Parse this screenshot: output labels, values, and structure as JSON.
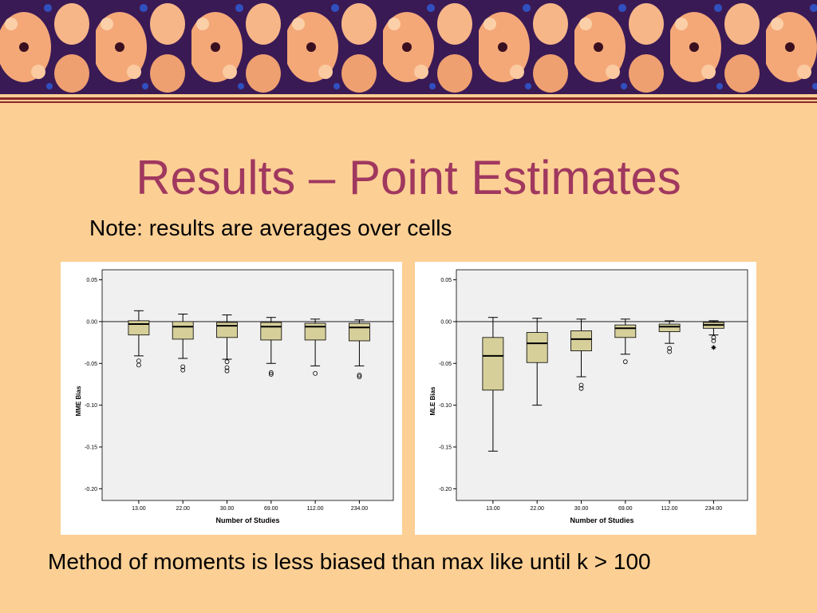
{
  "title": "Results – Point Estimates",
  "note": "Note: results are averages over cells",
  "footer": "Method of moments is less biased than max like until k > 100",
  "chart_data": [
    {
      "type": "box",
      "xlabel": "Number of Studies",
      "ylabel": "MME Bias",
      "categories": [
        "13.00",
        "22.00",
        "30.00",
        "69.00",
        "112.00",
        "234.00"
      ],
      "color": "#d6cf9a",
      "reference_line": 0,
      "ylim": [
        -0.214,
        0.062
      ],
      "yticks": [
        {
          "value": 0.05,
          "label": "0.05"
        },
        {
          "value": 0,
          "label": "0.00"
        },
        {
          "value": -0.05,
          "label": "-0.05"
        },
        {
          "value": -0.1,
          "label": "-0.10"
        },
        {
          "value": -0.15,
          "label": "-0.15"
        },
        {
          "value": -0.2,
          "label": "-0.20"
        }
      ],
      "boxes": [
        {
          "low": -0.041,
          "q1": -0.016,
          "median": -0.003,
          "q3": 0.001,
          "high": 0.013,
          "outliers": [
            -0.047,
            -0.052
          ]
        },
        {
          "low": -0.044,
          "q1": -0.021,
          "median": -0.006,
          "q3": 0,
          "high": 0.009,
          "outliers": [
            -0.054,
            -0.058
          ]
        },
        {
          "low": -0.045,
          "q1": -0.019,
          "median": -0.005,
          "q3": -0.001,
          "high": 0.008,
          "outliers": [
            -0.048,
            -0.055,
            -0.059
          ]
        },
        {
          "low": -0.05,
          "q1": -0.022,
          "median": -0.006,
          "q3": -0.001,
          "high": 0.005,
          "outliers": [
            -0.061,
            -0.063
          ]
        },
        {
          "low": -0.053,
          "q1": -0.022,
          "median": -0.006,
          "q3": -0.002,
          "high": 0.003,
          "outliers": [
            -0.062
          ]
        },
        {
          "low": -0.053,
          "q1": -0.023,
          "median": -0.007,
          "q3": -0.002,
          "high": 0.002,
          "outliers": [
            -0.064,
            -0.066
          ]
        }
      ]
    },
    {
      "type": "box",
      "xlabel": "Number of Studies",
      "ylabel": "MLE Bias",
      "categories": [
        "13.00",
        "22.00",
        "30.00",
        "69.00",
        "112.00",
        "234.00"
      ],
      "color": "#d6cf9a",
      "reference_line": 0,
      "ylim": [
        -0.214,
        0.062
      ],
      "yticks": [
        {
          "value": 0.05,
          "label": "0.05"
        },
        {
          "value": 0,
          "label": "0.00"
        },
        {
          "value": -0.05,
          "label": "-0.05"
        },
        {
          "value": -0.1,
          "label": "-0.10"
        },
        {
          "value": -0.15,
          "label": "-0.15"
        },
        {
          "value": -0.2,
          "label": "-0.20"
        }
      ],
      "boxes": [
        {
          "low": -0.155,
          "q1": -0.082,
          "median": -0.041,
          "q3": -0.019,
          "high": 0.005,
          "outliers": []
        },
        {
          "low": -0.1,
          "q1": -0.049,
          "median": -0.026,
          "q3": -0.013,
          "high": 0.004,
          "outliers": []
        },
        {
          "low": -0.066,
          "q1": -0.035,
          "median": -0.021,
          "q3": -0.011,
          "high": 0.003,
          "outliers": [
            -0.076,
            -0.08
          ]
        },
        {
          "low": -0.039,
          "q1": -0.019,
          "median": -0.008,
          "q3": -0.004,
          "high": 0.003,
          "outliers": [
            -0.048
          ]
        },
        {
          "low": -0.026,
          "q1": -0.012,
          "median": -0.006,
          "q3": -0.003,
          "high": 0.001,
          "outliers": [
            -0.032,
            -0.036
          ]
        },
        {
          "low": -0.016,
          "q1": -0.008,
          "median": -0.004,
          "q3": -0.001,
          "high": 0.001,
          "outliers": [
            -0.019,
            -0.023
          ],
          "extremes": [
            -0.031
          ]
        }
      ]
    }
  ]
}
